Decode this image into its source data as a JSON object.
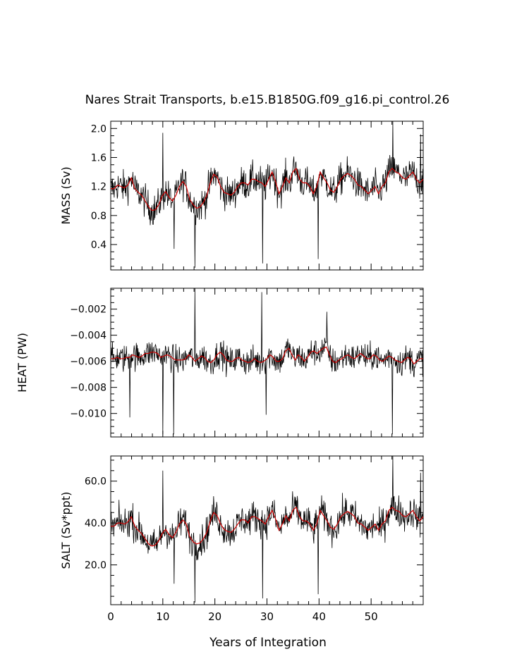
{
  "chart_data": {
    "type": "line",
    "title": "Nares Strait Transports, b.e15.B1850G.f09_g16.pi_control.26",
    "xlabel": "Years of Integration",
    "xlim": [
      0,
      60
    ],
    "x_ticks": [
      0,
      10,
      20,
      30,
      40,
      50
    ],
    "x_tick_labels": [
      "0",
      "10",
      "20",
      "30",
      "40",
      "50"
    ],
    "panels": [
      {
        "name": "mass",
        "ylabel": "MASS (Sv)",
        "ylim": [
          0.05,
          2.1
        ],
        "yticks": [
          0.4,
          0.8,
          1.2,
          1.6,
          2.0
        ],
        "ytick_labels": [
          "0.4",
          "0.8",
          "1.2",
          "1.6",
          "2.0"
        ],
        "series": [
          {
            "name": "monthly",
            "color": "#000000",
            "base": 1.2,
            "noise": 0.22,
            "spikes": [
              [
                12.2,
                0.34
              ],
              [
                16.2,
                0.08
              ],
              [
                29.2,
                0.14
              ],
              [
                39.8,
                0.2
              ],
              [
                10.0,
                1.94
              ],
              [
                54.2,
                2.15
              ],
              [
                59.5,
                1.92
              ]
            ],
            "values": [
              1.17,
              1.17,
              1.22,
              1.2,
              1.18,
              1.22,
              1.32,
              1.17,
              1.12,
              1.08,
              1.0,
              0.92,
              0.87,
              0.88,
              0.95,
              1.07,
              1.13,
              1.05,
              1.0,
              1.08,
              1.2,
              1.27,
              1.2,
              1.02,
              0.95,
              0.9,
              0.92,
              0.98,
              1.08,
              1.25,
              1.37,
              1.33,
              1.2,
              1.12,
              1.1,
              1.08,
              1.12,
              1.2,
              1.25,
              1.25,
              1.22,
              1.3,
              1.3,
              1.27,
              1.25,
              1.2,
              1.3,
              1.4,
              1.27,
              1.1,
              1.2,
              1.32,
              1.25,
              1.4,
              1.45,
              1.3,
              1.25,
              1.25,
              1.2,
              1.1,
              1.2,
              1.4,
              1.32,
              1.25,
              1.15,
              1.12,
              1.2,
              1.3,
              1.35,
              1.38,
              1.35,
              1.3,
              1.22,
              1.2,
              1.15,
              1.1,
              1.15,
              1.2,
              1.1,
              1.2,
              1.25,
              1.4,
              1.45,
              1.4,
              1.38,
              1.32,
              1.3,
              1.35,
              1.4,
              1.3,
              1.25,
              1.3
            ]
          },
          {
            "name": "smoothed",
            "color": "#cc0000",
            "x": [
              0,
              0.6,
              1.2,
              1.8,
              2.4,
              3.0,
              3.6,
              4.2,
              4.8,
              5.4,
              6.0,
              6.6,
              7.2,
              7.8,
              8.4,
              9.0,
              9.6,
              10.2,
              10.8,
              11.4,
              12.0,
              12.6,
              13.2,
              13.8,
              14.4,
              15.0,
              15.6,
              16.2,
              16.8,
              17.4,
              18.0,
              18.6,
              19.2,
              19.8,
              20.4,
              21.0,
              21.6,
              22.2,
              22.8,
              23.4,
              24.0,
              24.6,
              25.2,
              25.8,
              26.4,
              27.0,
              27.6,
              28.2,
              28.8,
              29.4,
              30.0,
              30.6,
              31.2,
              31.8,
              32.4,
              33.0,
              33.6,
              34.2,
              34.8,
              35.4,
              36.0,
              36.6,
              37.2,
              37.8,
              38.4,
              39.0,
              39.6,
              40.2,
              40.8,
              41.4,
              42.0,
              42.6,
              43.2,
              43.8,
              44.4,
              45.0,
              45.6,
              46.2,
              46.8,
              47.4,
              48.0,
              48.6,
              49.2,
              49.8,
              50.4,
              51.0,
              51.6,
              52.2,
              52.8,
              53.4,
              54.0,
              54.6,
              55.2,
              55.8,
              56.4,
              57.0,
              57.6,
              58.2,
              58.8,
              59.4,
              60.0
            ]
          }
        ]
      },
      {
        "name": "heat",
        "ylabel": "HEAT (PW)",
        "ylim": [
          -0.0118,
          -0.0004
        ],
        "yticks": [
          -0.01,
          -0.008,
          -0.006,
          -0.004,
          -0.002
        ],
        "ytick_labels": [
          "−0.010",
          "−0.008",
          "−0.006",
          "−0.004",
          "−0.002"
        ],
        "series": [
          {
            "name": "monthly",
            "color": "#000000",
            "base": -0.0059,
            "noise": 0.00105,
            "spikes": [
              [
                10.0,
                -0.0116
              ],
              [
                12.1,
                -0.0116
              ],
              [
                29.8,
                -0.0101
              ],
              [
                54.1,
                -0.0116
              ],
              [
                16.2,
                -0.0004
              ],
              [
                29.0,
                -0.0007
              ],
              [
                3.7,
                -0.0103
              ],
              [
                41.5,
                -0.0022
              ]
            ],
            "values": [
              -0.0058,
              -0.0058,
              -0.0057,
              -0.0058,
              -0.0058,
              -0.0057,
              -0.0057,
              -0.0055,
              -0.0056,
              -0.0057,
              -0.0056,
              -0.0054,
              -0.0054,
              -0.0053,
              -0.0053,
              -0.0054,
              -0.0057,
              -0.0056,
              -0.0055,
              -0.0056,
              -0.0058,
              -0.0059,
              -0.0059,
              -0.0059,
              -0.0058,
              -0.0055,
              -0.0057,
              -0.006,
              -0.0058,
              -0.0056,
              -0.0057,
              -0.006,
              -0.0061,
              -0.0059,
              -0.0055,
              -0.0053,
              -0.0055,
              -0.0059,
              -0.006,
              -0.006,
              -0.0058,
              -0.0057,
              -0.0059,
              -0.006,
              -0.0061,
              -0.006,
              -0.0058,
              -0.006,
              -0.0061,
              -0.006,
              -0.0058,
              -0.0055,
              -0.0057,
              -0.006,
              -0.006,
              -0.0058,
              -0.0052,
              -0.005,
              -0.0055,
              -0.0059,
              -0.0055,
              -0.0057,
              -0.006,
              -0.0057,
              -0.0053,
              -0.0052,
              -0.0054,
              -0.0052,
              -0.005,
              -0.0049,
              -0.0055,
              -0.006,
              -0.0061,
              -0.0059,
              -0.0058,
              -0.0056,
              -0.0055,
              -0.0057,
              -0.0058,
              -0.0056,
              -0.0054,
              -0.0056,
              -0.0058,
              -0.0058,
              -0.0055,
              -0.0056,
              -0.0059,
              -0.006,
              -0.0058,
              -0.0056,
              -0.0057,
              -0.0059,
              -0.006,
              -0.0061,
              -0.0059,
              -0.0057,
              -0.0058,
              -0.0062,
              -0.006,
              -0.0058,
              -0.0058
            ]
          }
        ]
      },
      {
        "name": "salt",
        "ylabel": "SALT (Sv*ppt)",
        "ylim": [
          1.0,
          72.0
        ],
        "yticks": [
          20.0,
          40.0,
          60.0
        ],
        "ytick_labels": [
          "20.0",
          "40.0",
          "60.0"
        ],
        "series": [
          {
            "name": "monthly",
            "color": "#000000",
            "base": 40.0,
            "noise": 7.5,
            "spikes": [
              [
                12.2,
                11.0
              ],
              [
                16.2,
                2.0
              ],
              [
                29.2,
                4.0
              ],
              [
                39.8,
                6.0
              ],
              [
                10.0,
                65.0
              ],
              [
                54.2,
                72.0
              ],
              [
                59.5,
                64.0
              ]
            ],
            "values": [
              38.5,
              38.5,
              40.0,
              40.0,
              39.5,
              40.5,
              43.0,
              38.5,
              36.5,
              35.0,
              32.5,
              30.0,
              29.0,
              29.5,
              31.5,
              35.0,
              37.0,
              34.5,
              33.0,
              35.5,
              39.5,
              41.5,
              39.5,
              33.5,
              31.0,
              30.0,
              30.5,
              32.5,
              35.5,
              41.0,
              45.0,
              43.5,
              39.5,
              37.0,
              36.0,
              35.5,
              37.0,
              39.5,
              41.5,
              41.5,
              40.0,
              43.0,
              43.0,
              42.0,
              41.0,
              39.5,
              43.0,
              46.0,
              42.0,
              36.5,
              39.5,
              43.5,
              41.0,
              46.0,
              47.5,
              43.0,
              41.0,
              41.0,
              39.5,
              36.5,
              39.5,
              46.0,
              43.5,
              41.0,
              38.0,
              37.0,
              39.5,
              43.0,
              44.5,
              45.5,
              44.5,
              43.0,
              40.0,
              39.5,
              38.0,
              36.5,
              38.0,
              39.5,
              36.5,
              39.5,
              41.0,
              46.0,
              47.5,
              46.0,
              45.5,
              43.5,
              43.0,
              44.5,
              46.0,
              43.0,
              41.0,
              43.0
            ]
          },
          {
            "name": "smoothed",
            "color": "#cc0000"
          }
        ]
      }
    ]
  }
}
